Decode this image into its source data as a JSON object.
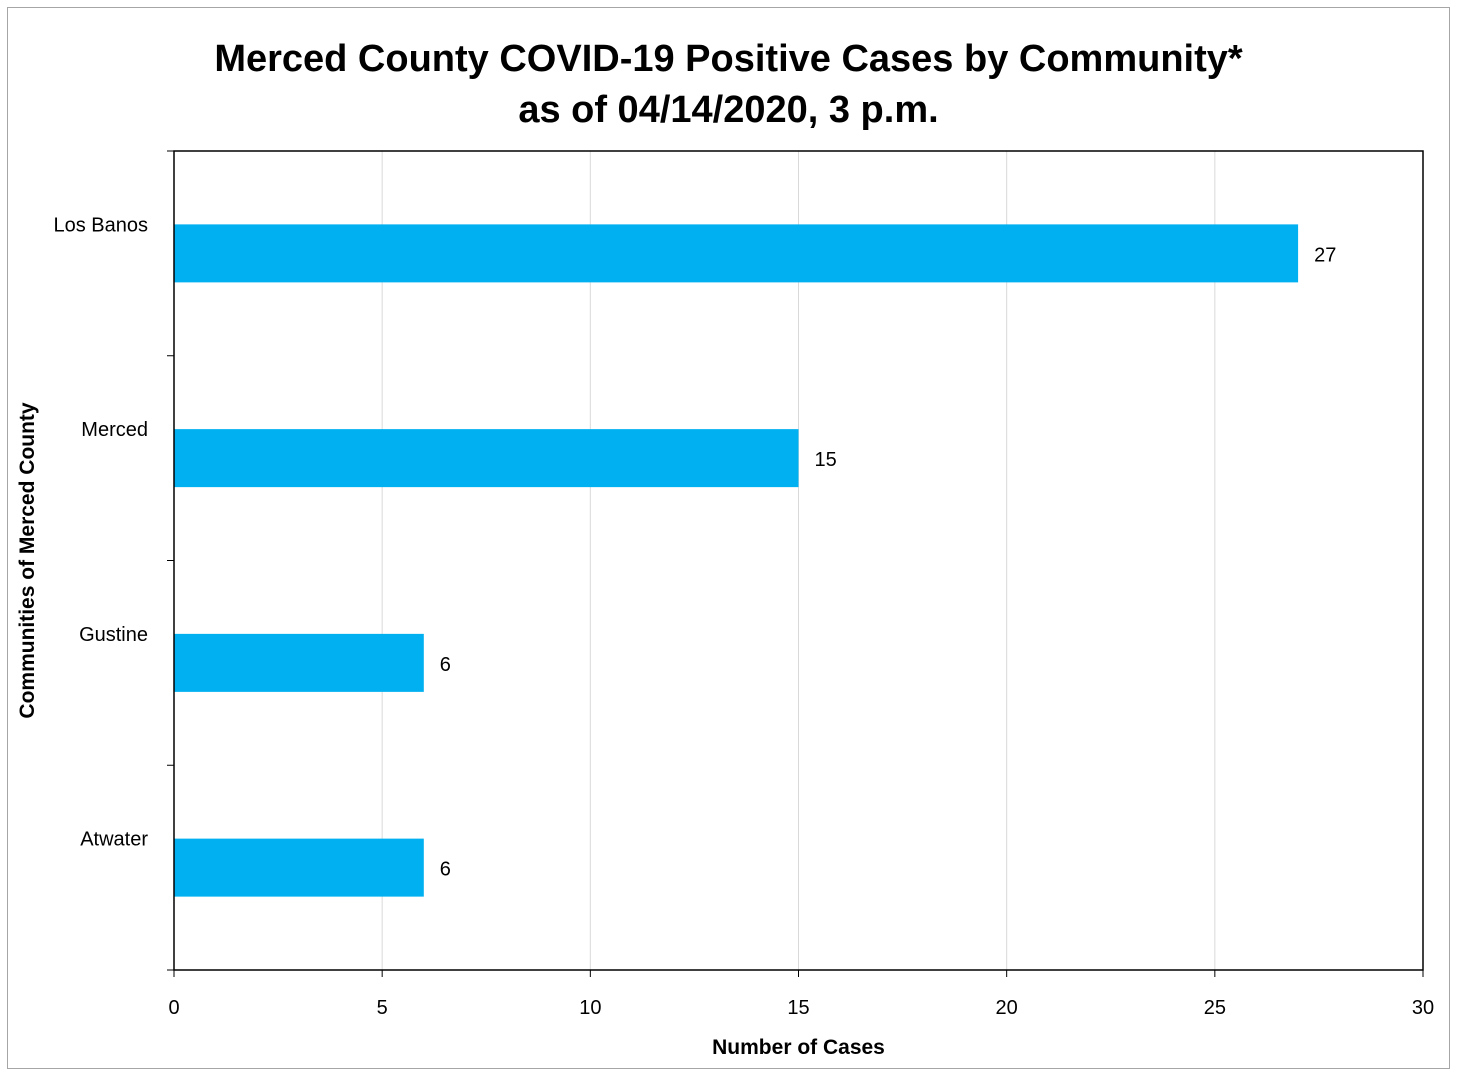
{
  "chart_data": {
    "type": "bar",
    "orientation": "horizontal",
    "title": [
      "Merced County COVID-19 Positive Cases by Community*",
      "as of 04/14/2020, 3 p.m."
    ],
    "xlabel": "Number of Cases",
    "ylabel": "Communities of Merced County",
    "categories": [
      "Los Banos",
      "Merced",
      "Gustine",
      "Atwater"
    ],
    "values": [
      27,
      15,
      6,
      6
    ],
    "data_labels": [
      "27",
      "15",
      "6",
      "6"
    ],
    "xlim": [
      0,
      30
    ],
    "xticks": [
      0,
      5,
      10,
      15,
      20,
      25,
      30
    ],
    "xtick_labels": [
      "0",
      "5",
      "10",
      "15",
      "20",
      "25",
      "30"
    ],
    "grid": "vertical",
    "legend": "none",
    "bar_color": "#00b0f0",
    "gridline_color": "#d9d9d9"
  }
}
